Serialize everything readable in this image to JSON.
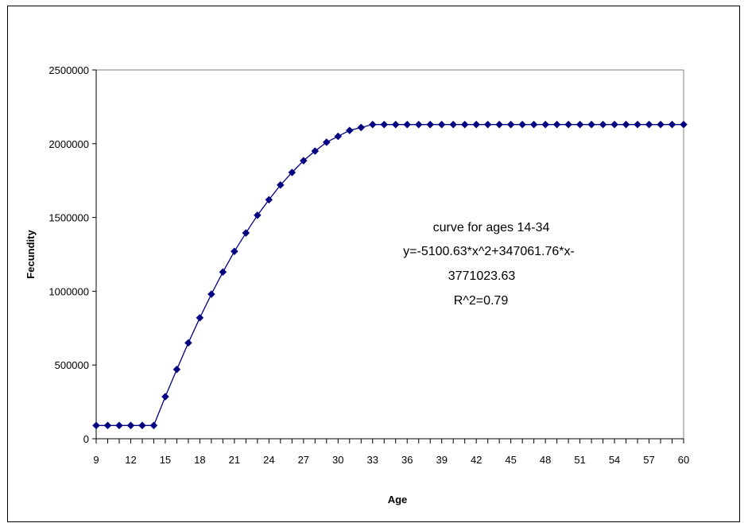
{
  "chart_data": {
    "type": "line",
    "title": "",
    "xlabel": "Age",
    "ylabel": "Fecundity",
    "xlim": [
      9,
      60
    ],
    "ylim": [
      0,
      2500000
    ],
    "x_ticks": [
      "9",
      "12",
      "15",
      "18",
      "21",
      "24",
      "27",
      "30",
      "33",
      "36",
      "39",
      "42",
      "45",
      "48",
      "51",
      "54",
      "57",
      "60"
    ],
    "y_ticks": [
      "0",
      "500000",
      "1000000",
      "1500000",
      "2000000",
      "2500000"
    ],
    "grid": false,
    "legend": "none",
    "marker": "diamond",
    "color": "#000080",
    "annotation": [
      "curve for ages 14-34",
      "y=-5100.63*x^2+347061.76*x-",
      "3771023.63",
      "R^2=0.79"
    ],
    "series": [
      {
        "x": [
          9,
          10,
          11,
          12,
          13,
          14,
          15,
          16,
          17,
          18,
          19,
          20,
          21,
          22,
          23,
          24,
          25,
          26,
          27,
          28,
          29,
          30,
          31,
          32,
          33,
          34,
          35,
          36,
          37,
          38,
          39,
          40,
          41,
          42,
          43,
          44,
          45,
          46,
          47,
          48,
          49,
          50,
          51,
          52,
          53,
          54,
          55,
          56,
          57,
          58,
          59,
          60
        ],
        "y": [
          90000,
          90000,
          90000,
          90000,
          90000,
          90000,
          285000,
          470000,
          650000,
          820000,
          980000,
          1130000,
          1270000,
          1395000,
          1515000,
          1620000,
          1720000,
          1805000,
          1885000,
          1950000,
          2010000,
          2050000,
          2090000,
          2110000,
          2130000,
          2130000,
          2130000,
          2130000,
          2130000,
          2130000,
          2130000,
          2130000,
          2130000,
          2130000,
          2130000,
          2130000,
          2130000,
          2130000,
          2130000,
          2130000,
          2130000,
          2130000,
          2130000,
          2130000,
          2130000,
          2130000,
          2130000,
          2130000,
          2130000,
          2130000,
          2130000,
          2130000
        ]
      }
    ]
  }
}
